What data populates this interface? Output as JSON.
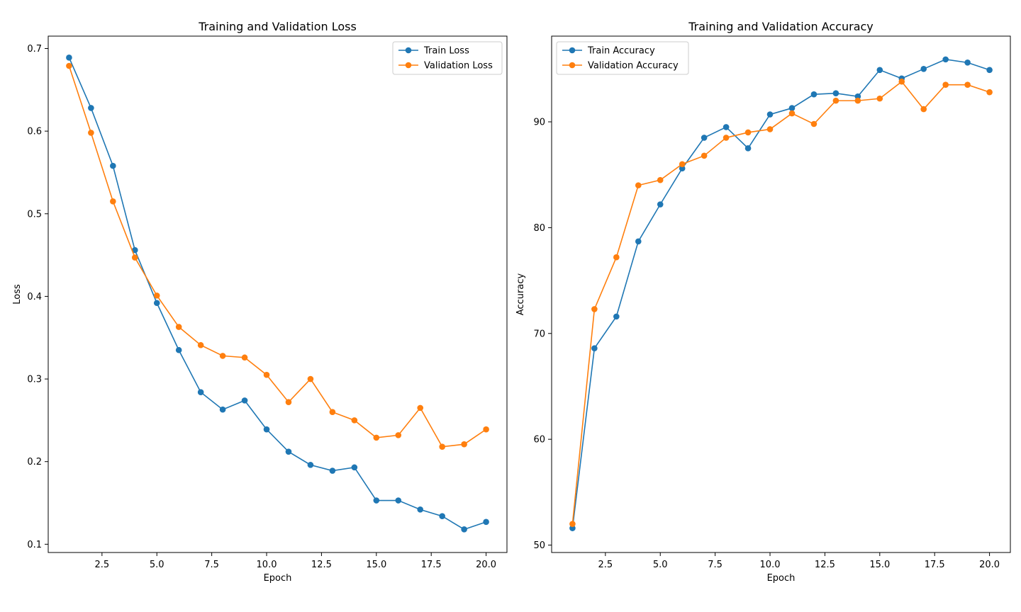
{
  "chart_data": [
    {
      "type": "line",
      "title": "Training and Validation Loss",
      "xlabel": "Epoch",
      "ylabel": "Loss",
      "xlim": [
        0.05,
        20.95
      ],
      "ylim": [
        0.09,
        0.715
      ],
      "xticks": [
        2.5,
        5.0,
        7.5,
        10.0,
        12.5,
        15.0,
        17.5,
        20.0
      ],
      "xtick_labels": [
        "2.5",
        "5.0",
        "7.5",
        "10.0",
        "12.5",
        "15.0",
        "17.5",
        "20.0"
      ],
      "yticks": [
        0.1,
        0.2,
        0.3,
        0.4,
        0.5,
        0.6,
        0.7
      ],
      "ytick_labels": [
        "0.1",
        "0.2",
        "0.3",
        "0.4",
        "0.5",
        "0.6",
        "0.7"
      ],
      "legend_position": "top-right",
      "grid": false,
      "x": [
        1,
        2,
        3,
        4,
        5,
        6,
        7,
        8,
        9,
        10,
        11,
        12,
        13,
        14,
        15,
        16,
        17,
        18,
        19,
        20
      ],
      "series": [
        {
          "name": "Train Loss",
          "color": "#1f77b4",
          "values": [
            0.689,
            0.628,
            0.558,
            0.456,
            0.392,
            0.335,
            0.284,
            0.263,
            0.274,
            0.239,
            0.212,
            0.196,
            0.189,
            0.193,
            0.153,
            0.153,
            0.142,
            0.134,
            0.118,
            0.127
          ]
        },
        {
          "name": "Validation Loss",
          "color": "#ff7f0e",
          "values": [
            0.679,
            0.598,
            0.515,
            0.447,
            0.401,
            0.363,
            0.341,
            0.328,
            0.326,
            0.305,
            0.272,
            0.3,
            0.26,
            0.25,
            0.229,
            0.232,
            0.265,
            0.218,
            0.221,
            0.239
          ]
        }
      ]
    },
    {
      "type": "line",
      "title": "Training and Validation Accuracy",
      "xlabel": "Epoch",
      "ylabel": "Accuracy",
      "xlim": [
        0.05,
        20.95
      ],
      "ylim": [
        49.3,
        98.1
      ],
      "xticks": [
        2.5,
        5.0,
        7.5,
        10.0,
        12.5,
        15.0,
        17.5,
        20.0
      ],
      "xtick_labels": [
        "2.5",
        "5.0",
        "7.5",
        "10.0",
        "12.5",
        "15.0",
        "17.5",
        "20.0"
      ],
      "yticks": [
        50,
        60,
        70,
        80,
        90
      ],
      "ytick_labels": [
        "50",
        "60",
        "70",
        "80",
        "90"
      ],
      "legend_position": "top-left",
      "grid": false,
      "x": [
        1,
        2,
        3,
        4,
        5,
        6,
        7,
        8,
        9,
        10,
        11,
        12,
        13,
        14,
        15,
        16,
        17,
        18,
        19,
        20
      ],
      "series": [
        {
          "name": "Train Accuracy",
          "color": "#1f77b4",
          "values": [
            51.6,
            68.6,
            71.6,
            78.7,
            82.2,
            85.6,
            88.5,
            89.5,
            87.5,
            90.7,
            91.3,
            92.6,
            92.7,
            92.4,
            94.9,
            94.1,
            95.0,
            95.9,
            95.6,
            94.9
          ]
        },
        {
          "name": "Validation Accuracy",
          "color": "#ff7f0e",
          "values": [
            52.0,
            72.3,
            77.2,
            84.0,
            84.5,
            86.0,
            86.8,
            88.5,
            89.0,
            89.3,
            90.8,
            89.8,
            92.0,
            92.0,
            92.2,
            93.8,
            91.2,
            93.5,
            93.5,
            92.8
          ]
        }
      ]
    }
  ]
}
